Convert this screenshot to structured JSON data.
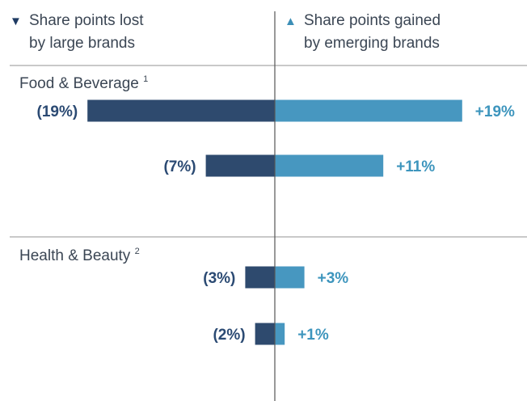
{
  "header": {
    "left_icon": "triangle-down-icon",
    "left_line1": "Share points lost",
    "left_line2": "by large brands",
    "right_icon": "triangle-up-icon",
    "right_line1": "Share points gained",
    "right_line2": "by emerging brands"
  },
  "colors": {
    "lost": "#2e4a6e",
    "gained": "#4797c0",
    "lost_label": "#2b4a73",
    "gained_label": "#3d95bd",
    "text": "#3b4654",
    "rule": "#c9c9c9",
    "axis": "#555555"
  },
  "chart_data": {
    "type": "bar",
    "orientation": "horizontal-diverging",
    "groups": [
      {
        "title": "Food & Beverage",
        "footnote": "1",
        "rows": [
          {
            "lost": 19,
            "gained": 19,
            "lost_label": "(19%)",
            "gained_label": "+19%"
          },
          {
            "lost": 7,
            "gained": 11,
            "lost_label": "(7%)",
            "gained_label": "+11%"
          }
        ]
      },
      {
        "title": "Health & Beauty",
        "footnote": "2",
        "rows": [
          {
            "lost": 3,
            "gained": 3,
            "lost_label": "(3%)",
            "gained_label": "+3%"
          },
          {
            "lost": 2,
            "gained": 1,
            "lost_label": "(2%)",
            "gained_label": "+1%"
          }
        ]
      }
    ],
    "series": [
      {
        "name": "Share points lost by large brands",
        "key": "lost"
      },
      {
        "name": "Share points gained by emerging brands",
        "key": "gained"
      }
    ],
    "legend": "top"
  }
}
